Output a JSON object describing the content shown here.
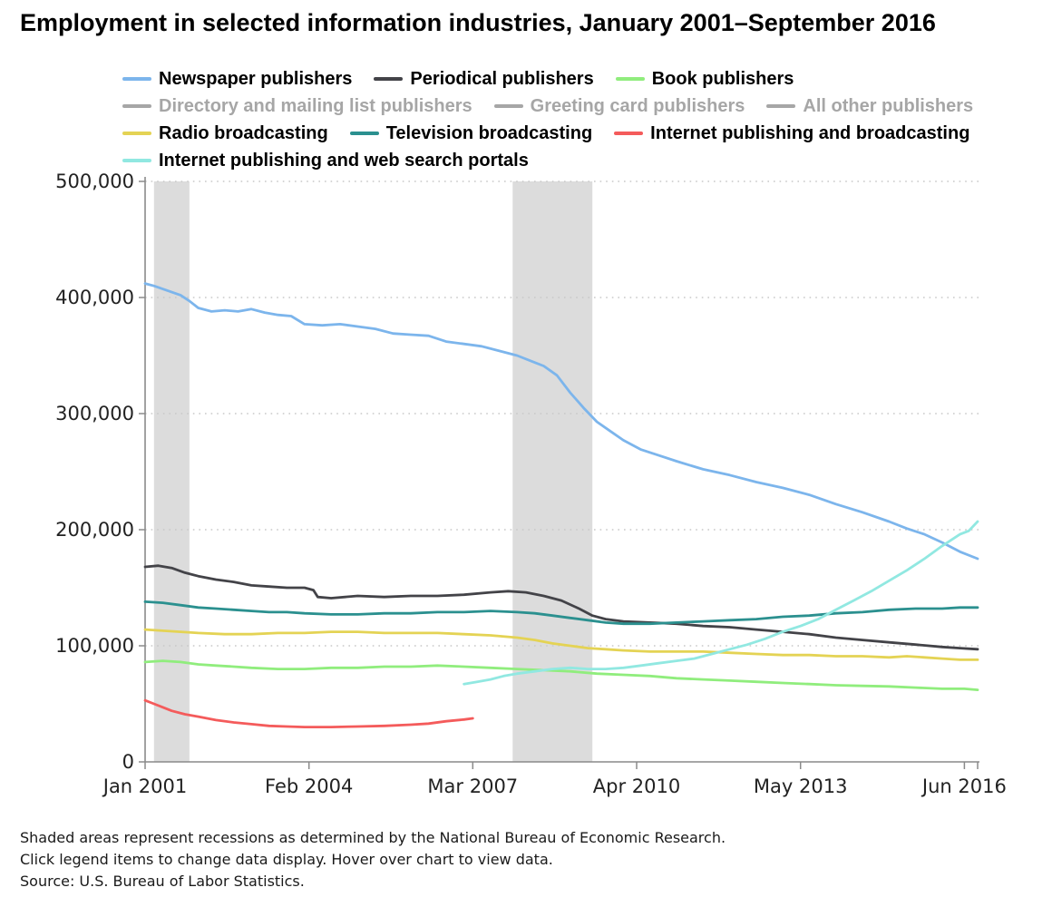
{
  "title": "Employment in selected information industries, January 2001–September 2016",
  "legend": {
    "hidden_color": "#a6a6a6",
    "items": [
      {
        "label": "Newspaper publishers",
        "color": "#7cb5ec",
        "visible": true
      },
      {
        "label": "Periodical publishers",
        "color": "#434348",
        "visible": true
      },
      {
        "label": "Book publishers",
        "color": "#90ed7d",
        "visible": true
      },
      {
        "label": "Directory and mailing list publishers",
        "color": "#a6a6a6",
        "visible": false
      },
      {
        "label": "Greeting card publishers",
        "color": "#a6a6a6",
        "visible": false
      },
      {
        "label": "All other publishers",
        "color": "#a6a6a6",
        "visible": false
      },
      {
        "label": "Radio broadcasting",
        "color": "#e4d354",
        "visible": true
      },
      {
        "label": "Television broadcasting",
        "color": "#2b908f",
        "visible": true
      },
      {
        "label": "Internet publishing and broadcasting",
        "color": "#f45b5b",
        "visible": true
      },
      {
        "label": "Internet publishing and web search portals",
        "color": "#91e8e1",
        "visible": true
      }
    ]
  },
  "footnotes": [
    "Shaded areas represent recessions as determined by the National Bureau of Economic Research.",
    "Click legend items to change data display. Hover over chart to view data.",
    "Source: U.S. Bureau of Labor Statistics."
  ],
  "chart_data": {
    "type": "line",
    "title": "Employment in selected information industries, January 2001–September 2016",
    "x_unit": "months since Jan 2001",
    "x_range": [
      0,
      188
    ],
    "y_range": [
      0,
      500000
    ],
    "grid": "dotted-horizontal",
    "recession_fill": "#dcdcdc",
    "x_ticks": [
      {
        "label": "Jan 2001",
        "m": 0
      },
      {
        "label": "Feb 2004",
        "m": 37
      },
      {
        "label": "Mar 2007",
        "m": 74
      },
      {
        "label": "Apr 2010",
        "m": 111
      },
      {
        "label": "May 2013",
        "m": 148
      },
      {
        "label": "Jun 2016",
        "m": 185
      }
    ],
    "y_ticks": [
      {
        "label": "0",
        "v": 0
      },
      {
        "label": "100,000",
        "v": 100000
      },
      {
        "label": "200,000",
        "v": 200000
      },
      {
        "label": "300,000",
        "v": 300000
      },
      {
        "label": "400,000",
        "v": 400000
      },
      {
        "label": "500,000",
        "v": 500000
      }
    ],
    "recessions": [
      {
        "start_m": 2,
        "end_m": 10
      },
      {
        "start_m": 83,
        "end_m": 101
      }
    ],
    "series": [
      {
        "name": "Newspaper publishers",
        "color": "#7cb5ec",
        "visible": true,
        "points": [
          [
            0,
            412000
          ],
          [
            2,
            410000
          ],
          [
            5,
            406000
          ],
          [
            8,
            402000
          ],
          [
            10,
            397000
          ],
          [
            12,
            391000
          ],
          [
            15,
            388000
          ],
          [
            18,
            389000
          ],
          [
            21,
            388000
          ],
          [
            24,
            390000
          ],
          [
            27,
            387000
          ],
          [
            30,
            385000
          ],
          [
            33,
            384000
          ],
          [
            36,
            377000
          ],
          [
            40,
            376000
          ],
          [
            44,
            377000
          ],
          [
            48,
            375000
          ],
          [
            52,
            373000
          ],
          [
            56,
            369000
          ],
          [
            60,
            368000
          ],
          [
            64,
            367000
          ],
          [
            68,
            362000
          ],
          [
            72,
            360000
          ],
          [
            76,
            358000
          ],
          [
            80,
            354000
          ],
          [
            84,
            350000
          ],
          [
            88,
            344000
          ],
          [
            90,
            341000
          ],
          [
            93,
            333000
          ],
          [
            96,
            318000
          ],
          [
            99,
            305000
          ],
          [
            102,
            293000
          ],
          [
            105,
            285000
          ],
          [
            108,
            277000
          ],
          [
            112,
            269000
          ],
          [
            116,
            264000
          ],
          [
            120,
            259000
          ],
          [
            126,
            252000
          ],
          [
            132,
            247000
          ],
          [
            138,
            241000
          ],
          [
            144,
            236000
          ],
          [
            150,
            230000
          ],
          [
            156,
            222000
          ],
          [
            162,
            215000
          ],
          [
            168,
            207000
          ],
          [
            172,
            201000
          ],
          [
            176,
            196000
          ],
          [
            180,
            189000
          ],
          [
            184,
            181000
          ],
          [
            188,
            175000
          ]
        ]
      },
      {
        "name": "Periodical publishers",
        "color": "#434348",
        "visible": true,
        "points": [
          [
            0,
            168000
          ],
          [
            3,
            169000
          ],
          [
            6,
            167000
          ],
          [
            9,
            163000
          ],
          [
            12,
            160000
          ],
          [
            16,
            157000
          ],
          [
            20,
            155000
          ],
          [
            24,
            152000
          ],
          [
            28,
            151000
          ],
          [
            32,
            150000
          ],
          [
            36,
            150000
          ],
          [
            38,
            148000
          ],
          [
            39,
            142000
          ],
          [
            42,
            141000
          ],
          [
            48,
            143000
          ],
          [
            54,
            142000
          ],
          [
            60,
            143000
          ],
          [
            66,
            143000
          ],
          [
            72,
            144000
          ],
          [
            78,
            146000
          ],
          [
            82,
            147000
          ],
          [
            86,
            146000
          ],
          [
            90,
            143000
          ],
          [
            94,
            139000
          ],
          [
            98,
            132000
          ],
          [
            101,
            126000
          ],
          [
            104,
            123000
          ],
          [
            108,
            121000
          ],
          [
            114,
            120000
          ],
          [
            120,
            119000
          ],
          [
            126,
            117000
          ],
          [
            132,
            116000
          ],
          [
            138,
            114000
          ],
          [
            144,
            112000
          ],
          [
            150,
            110000
          ],
          [
            156,
            107000
          ],
          [
            162,
            105000
          ],
          [
            168,
            103000
          ],
          [
            174,
            101000
          ],
          [
            180,
            99000
          ],
          [
            184,
            98000
          ],
          [
            188,
            97000
          ]
        ]
      },
      {
        "name": "Book publishers",
        "color": "#90ed7d",
        "visible": true,
        "points": [
          [
            0,
            86000
          ],
          [
            4,
            87000
          ],
          [
            8,
            86000
          ],
          [
            12,
            84000
          ],
          [
            16,
            83000
          ],
          [
            20,
            82000
          ],
          [
            24,
            81000
          ],
          [
            30,
            80000
          ],
          [
            36,
            80000
          ],
          [
            42,
            81000
          ],
          [
            48,
            81000
          ],
          [
            54,
            82000
          ],
          [
            60,
            82000
          ],
          [
            66,
            83000
          ],
          [
            72,
            82000
          ],
          [
            78,
            81000
          ],
          [
            84,
            80000
          ],
          [
            90,
            79000
          ],
          [
            96,
            78000
          ],
          [
            102,
            76000
          ],
          [
            108,
            75000
          ],
          [
            114,
            74000
          ],
          [
            120,
            72000
          ],
          [
            126,
            71000
          ],
          [
            132,
            70000
          ],
          [
            138,
            69000
          ],
          [
            144,
            68000
          ],
          [
            150,
            67000
          ],
          [
            156,
            66000
          ],
          [
            162,
            65500
          ],
          [
            168,
            65000
          ],
          [
            174,
            64000
          ],
          [
            180,
            63000
          ],
          [
            185,
            63000
          ],
          [
            188,
            62000
          ]
        ]
      },
      {
        "name": "Directory and mailing list publishers",
        "color": "#a6a6a6",
        "visible": false,
        "points": []
      },
      {
        "name": "Greeting card publishers",
        "color": "#a6a6a6",
        "visible": false,
        "points": []
      },
      {
        "name": "All other publishers",
        "color": "#a6a6a6",
        "visible": false,
        "points": []
      },
      {
        "name": "Radio broadcasting",
        "color": "#e4d354",
        "visible": true,
        "points": [
          [
            0,
            114000
          ],
          [
            4,
            113000
          ],
          [
            8,
            112000
          ],
          [
            12,
            111000
          ],
          [
            18,
            110000
          ],
          [
            24,
            110000
          ],
          [
            30,
            111000
          ],
          [
            36,
            111000
          ],
          [
            42,
            112000
          ],
          [
            48,
            112000
          ],
          [
            54,
            111000
          ],
          [
            60,
            111000
          ],
          [
            66,
            111000
          ],
          [
            72,
            110000
          ],
          [
            78,
            109000
          ],
          [
            84,
            107000
          ],
          [
            88,
            105000
          ],
          [
            92,
            102000
          ],
          [
            96,
            100000
          ],
          [
            100,
            98000
          ],
          [
            104,
            97000
          ],
          [
            108,
            96000
          ],
          [
            114,
            95000
          ],
          [
            120,
            95000
          ],
          [
            126,
            95000
          ],
          [
            132,
            94000
          ],
          [
            138,
            93000
          ],
          [
            144,
            92000
          ],
          [
            150,
            92000
          ],
          [
            156,
            91000
          ],
          [
            162,
            91000
          ],
          [
            168,
            90000
          ],
          [
            172,
            91000
          ],
          [
            176,
            90000
          ],
          [
            180,
            89000
          ],
          [
            184,
            88000
          ],
          [
            188,
            88000
          ]
        ]
      },
      {
        "name": "Television broadcasting",
        "color": "#2b908f",
        "visible": true,
        "points": [
          [
            0,
            138000
          ],
          [
            4,
            137000
          ],
          [
            8,
            135000
          ],
          [
            12,
            133000
          ],
          [
            16,
            132000
          ],
          [
            20,
            131000
          ],
          [
            24,
            130000
          ],
          [
            28,
            129000
          ],
          [
            32,
            129000
          ],
          [
            36,
            128000
          ],
          [
            42,
            127000
          ],
          [
            48,
            127000
          ],
          [
            54,
            128000
          ],
          [
            60,
            128000
          ],
          [
            66,
            129000
          ],
          [
            72,
            129000
          ],
          [
            78,
            130000
          ],
          [
            84,
            129000
          ],
          [
            88,
            128000
          ],
          [
            92,
            126000
          ],
          [
            96,
            124000
          ],
          [
            100,
            122000
          ],
          [
            104,
            120000
          ],
          [
            108,
            119000
          ],
          [
            114,
            119000
          ],
          [
            120,
            120000
          ],
          [
            126,
            121000
          ],
          [
            132,
            122000
          ],
          [
            138,
            123000
          ],
          [
            144,
            125000
          ],
          [
            150,
            126000
          ],
          [
            156,
            128000
          ],
          [
            162,
            129000
          ],
          [
            168,
            131000
          ],
          [
            174,
            132000
          ],
          [
            180,
            132000
          ],
          [
            184,
            133000
          ],
          [
            188,
            133000
          ]
        ]
      },
      {
        "name": "Internet publishing and broadcasting",
        "color": "#f45b5b",
        "visible": true,
        "points": [
          [
            0,
            53000
          ],
          [
            2,
            50000
          ],
          [
            4,
            47000
          ],
          [
            6,
            44000
          ],
          [
            9,
            41000
          ],
          [
            12,
            39000
          ],
          [
            16,
            36000
          ],
          [
            20,
            34000
          ],
          [
            24,
            32500
          ],
          [
            28,
            31000
          ],
          [
            32,
            30500
          ],
          [
            36,
            30000
          ],
          [
            42,
            30000
          ],
          [
            48,
            30500
          ],
          [
            54,
            31000
          ],
          [
            60,
            32000
          ],
          [
            64,
            33000
          ],
          [
            68,
            35000
          ],
          [
            72,
            36500
          ],
          [
            74,
            37500
          ]
        ]
      },
      {
        "name": "Internet publishing and web search portals",
        "color": "#91e8e1",
        "visible": true,
        "points": [
          [
            72,
            67000
          ],
          [
            75,
            69000
          ],
          [
            78,
            71000
          ],
          [
            81,
            74000
          ],
          [
            84,
            76000
          ],
          [
            88,
            78000
          ],
          [
            92,
            80000
          ],
          [
            96,
            81000
          ],
          [
            100,
            80000
          ],
          [
            104,
            80000
          ],
          [
            108,
            81000
          ],
          [
            112,
            83000
          ],
          [
            116,
            85000
          ],
          [
            120,
            87000
          ],
          [
            124,
            89000
          ],
          [
            128,
            93000
          ],
          [
            132,
            97000
          ],
          [
            136,
            101000
          ],
          [
            140,
            106000
          ],
          [
            144,
            112000
          ],
          [
            148,
            117000
          ],
          [
            152,
            123000
          ],
          [
            156,
            131000
          ],
          [
            160,
            139000
          ],
          [
            164,
            147000
          ],
          [
            168,
            156000
          ],
          [
            172,
            165000
          ],
          [
            176,
            175000
          ],
          [
            180,
            186000
          ],
          [
            184,
            196000
          ],
          [
            186,
            199000
          ],
          [
            188,
            207000
          ]
        ]
      }
    ]
  }
}
